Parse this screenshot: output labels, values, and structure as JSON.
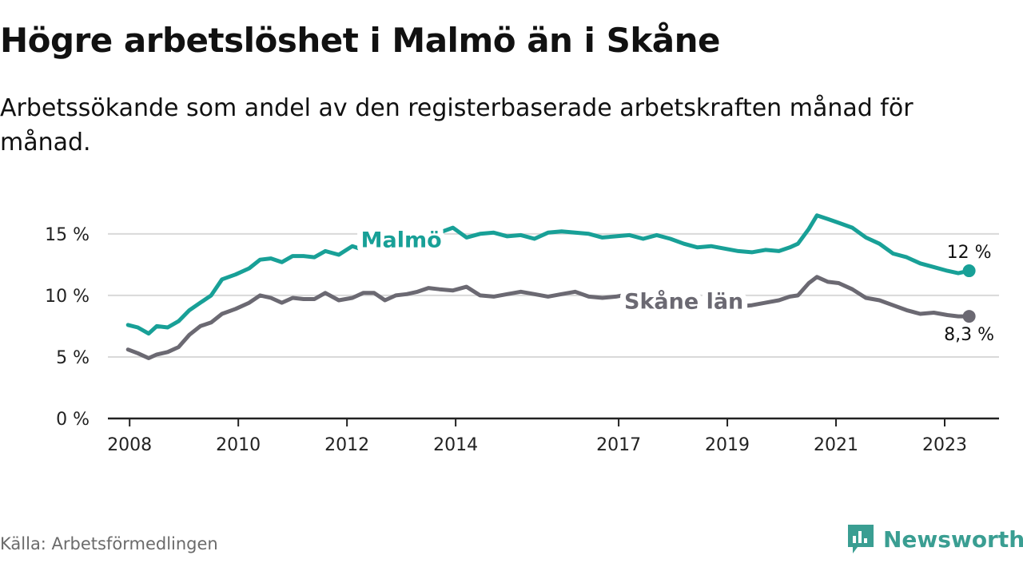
{
  "header": {
    "title": "Högre arbetslöshet i Malmö än i Skåne",
    "subtitle": "Arbetssökande som andel av den registerbaserade arbetskraften månad för månad."
  },
  "footer": {
    "source": "Källa: Arbetsförmedlingen",
    "brand": "Newsworthy"
  },
  "colors": {
    "malmo": "#18a097",
    "skane": "#6b6972",
    "grid": "#d9d9d9",
    "axis": "#222222",
    "brand": "#3a9e92"
  },
  "chart_data": {
    "type": "line",
    "title": "Högre arbetslöshet i Malmö än i Skåne",
    "xlabel": "",
    "ylabel": "",
    "ylim": [
      0,
      17
    ],
    "xlim": [
      2007.6,
      2024.0
    ],
    "y_ticks": [
      0,
      5,
      10,
      15
    ],
    "y_tick_labels": [
      "0 %",
      "5 %",
      "10 %",
      "15 %"
    ],
    "x_ticks": [
      2008,
      2010,
      2012,
      2014,
      2017,
      2019,
      2021,
      2023
    ],
    "x_tick_labels": [
      "2008",
      "2010",
      "2012",
      "2014",
      "2017",
      "2019",
      "2021",
      "2023"
    ],
    "series": [
      {
        "name": "Malmö",
        "end_label": "12 %",
        "points": [
          [
            2007.97,
            7.6
          ],
          [
            2008.15,
            7.4
          ],
          [
            2008.35,
            6.9
          ],
          [
            2008.5,
            7.5
          ],
          [
            2008.7,
            7.4
          ],
          [
            2008.9,
            7.9
          ],
          [
            2009.1,
            8.8
          ],
          [
            2009.3,
            9.4
          ],
          [
            2009.5,
            10.0
          ],
          [
            2009.7,
            11.3
          ],
          [
            2009.95,
            11.7
          ],
          [
            2010.2,
            12.2
          ],
          [
            2010.4,
            12.9
          ],
          [
            2010.6,
            13.0
          ],
          [
            2010.8,
            12.7
          ],
          [
            2011.0,
            13.2
          ],
          [
            2011.2,
            13.2
          ],
          [
            2011.4,
            13.1
          ],
          [
            2011.6,
            13.6
          ],
          [
            2011.85,
            13.3
          ],
          [
            2012.1,
            14.0
          ],
          [
            2012.3,
            13.7
          ],
          [
            2012.5,
            14.0
          ],
          [
            2012.7,
            13.7
          ],
          [
            2012.9,
            13.8
          ],
          [
            2013.1,
            13.7
          ],
          [
            2013.3,
            13.9
          ],
          [
            2013.5,
            14.7
          ],
          [
            2013.7,
            15.1
          ],
          [
            2013.95,
            15.5
          ],
          [
            2014.2,
            14.7
          ],
          [
            2014.45,
            15.0
          ],
          [
            2014.7,
            15.1
          ],
          [
            2014.95,
            14.8
          ],
          [
            2015.2,
            14.9
          ],
          [
            2015.45,
            14.6
          ],
          [
            2015.7,
            15.1
          ],
          [
            2015.95,
            15.2
          ],
          [
            2016.2,
            15.1
          ],
          [
            2016.45,
            15.0
          ],
          [
            2016.7,
            14.7
          ],
          [
            2016.95,
            14.8
          ],
          [
            2017.2,
            14.9
          ],
          [
            2017.45,
            14.6
          ],
          [
            2017.7,
            14.9
          ],
          [
            2017.95,
            14.6
          ],
          [
            2018.2,
            14.2
          ],
          [
            2018.45,
            13.9
          ],
          [
            2018.7,
            14.0
          ],
          [
            2018.95,
            13.8
          ],
          [
            2019.2,
            13.6
          ],
          [
            2019.45,
            13.5
          ],
          [
            2019.7,
            13.7
          ],
          [
            2019.95,
            13.6
          ],
          [
            2020.15,
            13.9
          ],
          [
            2020.3,
            14.2
          ],
          [
            2020.5,
            15.4
          ],
          [
            2020.65,
            16.5
          ],
          [
            2020.85,
            16.2
          ],
          [
            2021.05,
            15.9
          ],
          [
            2021.3,
            15.5
          ],
          [
            2021.55,
            14.7
          ],
          [
            2021.8,
            14.2
          ],
          [
            2022.05,
            13.4
          ],
          [
            2022.3,
            13.1
          ],
          [
            2022.55,
            12.6
          ],
          [
            2022.8,
            12.3
          ],
          [
            2023.05,
            12.0
          ],
          [
            2023.25,
            11.8
          ],
          [
            2023.45,
            12.0
          ]
        ]
      },
      {
        "name": "Skåne län",
        "end_label": "8,3 %",
        "points": [
          [
            2007.97,
            5.6
          ],
          [
            2008.15,
            5.3
          ],
          [
            2008.35,
            4.9
          ],
          [
            2008.5,
            5.2
          ],
          [
            2008.7,
            5.4
          ],
          [
            2008.9,
            5.8
          ],
          [
            2009.1,
            6.8
          ],
          [
            2009.3,
            7.5
          ],
          [
            2009.5,
            7.8
          ],
          [
            2009.7,
            8.5
          ],
          [
            2009.95,
            8.9
          ],
          [
            2010.2,
            9.4
          ],
          [
            2010.4,
            10.0
          ],
          [
            2010.6,
            9.8
          ],
          [
            2010.8,
            9.4
          ],
          [
            2011.0,
            9.8
          ],
          [
            2011.2,
            9.7
          ],
          [
            2011.4,
            9.7
          ],
          [
            2011.6,
            10.2
          ],
          [
            2011.85,
            9.6
          ],
          [
            2012.1,
            9.8
          ],
          [
            2012.3,
            10.2
          ],
          [
            2012.5,
            10.2
          ],
          [
            2012.7,
            9.6
          ],
          [
            2012.9,
            10.0
          ],
          [
            2013.1,
            10.1
          ],
          [
            2013.3,
            10.3
          ],
          [
            2013.5,
            10.6
          ],
          [
            2013.7,
            10.5
          ],
          [
            2013.95,
            10.4
          ],
          [
            2014.2,
            10.7
          ],
          [
            2014.45,
            10.0
          ],
          [
            2014.7,
            9.9
          ],
          [
            2014.95,
            10.1
          ],
          [
            2015.2,
            10.3
          ],
          [
            2015.45,
            10.1
          ],
          [
            2015.7,
            9.9
          ],
          [
            2015.95,
            10.1
          ],
          [
            2016.2,
            10.3
          ],
          [
            2016.45,
            9.9
          ],
          [
            2016.7,
            9.8
          ],
          [
            2016.95,
            9.9
          ],
          [
            2017.2,
            10.1
          ],
          [
            2017.45,
            9.9
          ],
          [
            2017.7,
            9.7
          ],
          [
            2017.95,
            9.6
          ],
          [
            2018.2,
            9.5
          ],
          [
            2018.45,
            9.4
          ],
          [
            2018.7,
            9.3
          ],
          [
            2018.95,
            9.2
          ],
          [
            2019.2,
            9.1
          ],
          [
            2019.45,
            9.2
          ],
          [
            2019.7,
            9.4
          ],
          [
            2019.95,
            9.6
          ],
          [
            2020.15,
            9.9
          ],
          [
            2020.3,
            10.0
          ],
          [
            2020.5,
            11.0
          ],
          [
            2020.65,
            11.5
          ],
          [
            2020.85,
            11.1
          ],
          [
            2021.05,
            11.0
          ],
          [
            2021.3,
            10.5
          ],
          [
            2021.55,
            9.8
          ],
          [
            2021.8,
            9.6
          ],
          [
            2022.05,
            9.2
          ],
          [
            2022.3,
            8.8
          ],
          [
            2022.55,
            8.5
          ],
          [
            2022.8,
            8.6
          ],
          [
            2023.05,
            8.4
          ],
          [
            2023.25,
            8.3
          ],
          [
            2023.45,
            8.3
          ]
        ]
      }
    ]
  }
}
